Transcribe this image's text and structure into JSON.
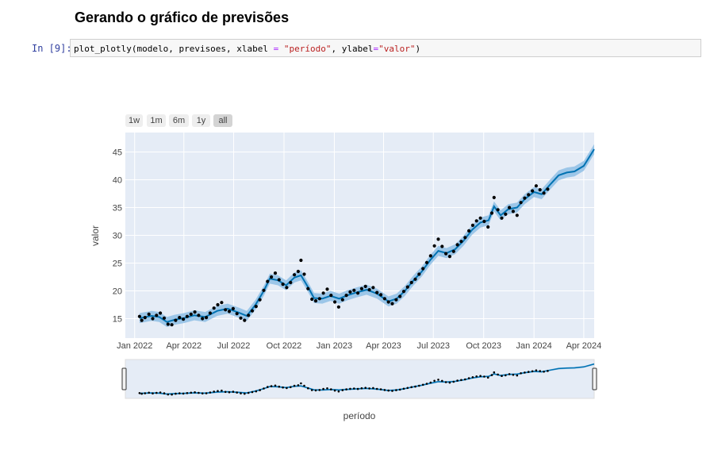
{
  "notebook": {
    "heading": "Gerando o gráfico de previsões",
    "prompt": "In [9]:",
    "code": {
      "part1": "plot_plotly(modelo, previsoes, xlabel ",
      "eq1": "=",
      "str1": " \"período\"",
      "part2": ", ylabel",
      "eq2": "=",
      "str2": "\"valor\"",
      "part3": ")"
    }
  },
  "range_selector": {
    "buttons": [
      "1w",
      "1m",
      "6m",
      "1y",
      "all"
    ],
    "active": "all"
  },
  "colors": {
    "plot_bg": "#e5ecf6",
    "forecast_line": "#0072b2",
    "band": "#9cc6e8",
    "points": "#000000"
  },
  "chart_data": {
    "type": "line",
    "xlabel": "período",
    "ylabel": "valor",
    "x_ticks": [
      "Jan 2022",
      "Apr 2022",
      "Jul 2022",
      "Oct 2022",
      "Jan 2023",
      "Apr 2023",
      "Jul 2023",
      "Oct 2023",
      "Jan 2024",
      "Apr 2024"
    ],
    "y_ticks": [
      15,
      20,
      25,
      30,
      35,
      40,
      45
    ],
    "ylim": [
      11.5,
      48.5
    ],
    "xlim": [
      "2021-12-15",
      "2024-04-20"
    ],
    "grid": true,
    "rangeslider": true,
    "series": [
      {
        "role": "forecast",
        "points": [
          [
            "2022-01-10",
            15.1
          ],
          [
            "2022-02-01",
            15.5
          ],
          [
            "2022-02-15",
            15.3
          ],
          [
            "2022-03-01",
            14.4
          ],
          [
            "2022-03-15",
            14.8
          ],
          [
            "2022-04-01",
            15.1
          ],
          [
            "2022-04-20",
            15.6
          ],
          [
            "2022-05-10",
            15.3
          ],
          [
            "2022-06-01",
            16.4
          ],
          [
            "2022-06-20",
            16.8
          ],
          [
            "2022-07-10",
            16.1
          ],
          [
            "2022-07-25",
            15.5
          ],
          [
            "2022-08-10",
            17.5
          ],
          [
            "2022-08-25",
            20.0
          ],
          [
            "2022-09-05",
            22.2
          ],
          [
            "2022-09-20",
            21.9
          ],
          [
            "2022-10-05",
            21.0
          ],
          [
            "2022-10-20",
            22.4
          ],
          [
            "2022-11-01",
            22.8
          ],
          [
            "2022-11-15",
            20.5
          ],
          [
            "2022-11-25",
            18.7
          ],
          [
            "2022-12-10",
            18.6
          ],
          [
            "2022-12-25",
            19.1
          ],
          [
            "2023-01-10",
            18.6
          ],
          [
            "2023-01-25",
            19.2
          ],
          [
            "2023-02-10",
            19.7
          ],
          [
            "2023-03-01",
            20.2
          ],
          [
            "2023-03-20",
            19.5
          ],
          [
            "2023-04-10",
            18.1
          ],
          [
            "2023-04-25",
            18.6
          ],
          [
            "2023-05-10",
            20.0
          ],
          [
            "2023-05-25",
            21.8
          ],
          [
            "2023-06-10",
            23.5
          ],
          [
            "2023-06-25",
            25.5
          ],
          [
            "2023-07-10",
            27.2
          ],
          [
            "2023-07-25",
            26.8
          ],
          [
            "2023-08-10",
            27.5
          ],
          [
            "2023-08-25",
            29.0
          ],
          [
            "2023-09-10",
            31.0
          ],
          [
            "2023-09-25",
            32.3
          ],
          [
            "2023-10-10",
            32.7
          ],
          [
            "2023-10-20",
            35.2
          ],
          [
            "2023-11-01",
            33.6
          ],
          [
            "2023-11-15",
            34.7
          ],
          [
            "2023-12-01",
            35.0
          ],
          [
            "2023-12-15",
            36.5
          ],
          [
            "2024-01-01",
            37.8
          ],
          [
            "2024-01-15",
            37.4
          ],
          [
            "2024-02-01",
            39.3
          ],
          [
            "2024-02-15",
            40.8
          ],
          [
            "2024-03-01",
            41.3
          ],
          [
            "2024-03-15",
            41.5
          ],
          [
            "2024-04-01",
            42.5
          ],
          [
            "2024-04-20",
            45.5
          ]
        ]
      },
      {
        "role": "observed",
        "points": [
          [
            "2022-01-10",
            15.4
          ],
          [
            "2022-01-14",
            14.7
          ],
          [
            "2022-01-20",
            15.2
          ],
          [
            "2022-01-27",
            15.8
          ],
          [
            "2022-02-03",
            15.0
          ],
          [
            "2022-02-10",
            15.6
          ],
          [
            "2022-02-17",
            16.0
          ],
          [
            "2022-02-24",
            15.1
          ],
          [
            "2022-03-03",
            14.0
          ],
          [
            "2022-03-10",
            13.9
          ],
          [
            "2022-03-17",
            14.7
          ],
          [
            "2022-03-24",
            15.2
          ],
          [
            "2022-03-31",
            14.9
          ],
          [
            "2022-04-07",
            15.4
          ],
          [
            "2022-04-14",
            15.8
          ],
          [
            "2022-04-21",
            16.2
          ],
          [
            "2022-04-28",
            15.6
          ],
          [
            "2022-05-05",
            15.0
          ],
          [
            "2022-05-12",
            15.2
          ],
          [
            "2022-05-19",
            16.0
          ],
          [
            "2022-05-26",
            16.9
          ],
          [
            "2022-06-02",
            17.5
          ],
          [
            "2022-06-09",
            17.9
          ],
          [
            "2022-06-16",
            16.6
          ],
          [
            "2022-06-23",
            16.3
          ],
          [
            "2022-06-30",
            16.8
          ],
          [
            "2022-07-07",
            15.9
          ],
          [
            "2022-07-14",
            15.1
          ],
          [
            "2022-07-21",
            14.7
          ],
          [
            "2022-07-28",
            15.6
          ],
          [
            "2022-08-04",
            16.4
          ],
          [
            "2022-08-11",
            17.2
          ],
          [
            "2022-08-18",
            18.4
          ],
          [
            "2022-08-25",
            20.1
          ],
          [
            "2022-09-01",
            21.7
          ],
          [
            "2022-09-08",
            22.5
          ],
          [
            "2022-09-15",
            23.2
          ],
          [
            "2022-09-22",
            22.0
          ],
          [
            "2022-09-29",
            21.2
          ],
          [
            "2022-10-06",
            20.6
          ],
          [
            "2022-10-13",
            21.5
          ],
          [
            "2022-10-20",
            22.9
          ],
          [
            "2022-10-27",
            23.5
          ],
          [
            "2022-11-01",
            25.5
          ],
          [
            "2022-11-07",
            23.0
          ],
          [
            "2022-11-14",
            20.4
          ],
          [
            "2022-11-21",
            18.5
          ],
          [
            "2022-11-28",
            18.2
          ],
          [
            "2022-12-05",
            18.6
          ],
          [
            "2022-12-12",
            19.6
          ],
          [
            "2022-12-19",
            20.3
          ],
          [
            "2022-12-26",
            19.2
          ],
          [
            "2023-01-02",
            18.0
          ],
          [
            "2023-01-09",
            17.1
          ],
          [
            "2023-01-16",
            18.4
          ],
          [
            "2023-01-23",
            19.2
          ],
          [
            "2023-01-30",
            19.8
          ],
          [
            "2023-02-06",
            20.1
          ],
          [
            "2023-02-13",
            19.6
          ],
          [
            "2023-02-20",
            20.4
          ],
          [
            "2023-02-27",
            20.8
          ],
          [
            "2023-03-06",
            20.2
          ],
          [
            "2023-03-13",
            20.6
          ],
          [
            "2023-03-20",
            19.7
          ],
          [
            "2023-03-27",
            19.3
          ],
          [
            "2023-04-03",
            18.6
          ],
          [
            "2023-04-10",
            18.0
          ],
          [
            "2023-04-17",
            17.7
          ],
          [
            "2023-04-24",
            18.4
          ],
          [
            "2023-05-01",
            19.0
          ],
          [
            "2023-05-08",
            19.9
          ],
          [
            "2023-05-15",
            20.7
          ],
          [
            "2023-05-22",
            21.5
          ],
          [
            "2023-05-29",
            22.1
          ],
          [
            "2023-06-05",
            23.0
          ],
          [
            "2023-06-12",
            24.0
          ],
          [
            "2023-06-19",
            25.1
          ],
          [
            "2023-06-26",
            26.3
          ],
          [
            "2023-07-03",
            28.1
          ],
          [
            "2023-07-10",
            29.3
          ],
          [
            "2023-07-17",
            28.0
          ],
          [
            "2023-07-24",
            26.7
          ],
          [
            "2023-07-31",
            26.2
          ],
          [
            "2023-08-07",
            27.1
          ],
          [
            "2023-08-14",
            28.3
          ],
          [
            "2023-08-21",
            28.9
          ],
          [
            "2023-08-28",
            29.6
          ],
          [
            "2023-09-04",
            30.8
          ],
          [
            "2023-09-11",
            31.8
          ],
          [
            "2023-09-18",
            32.6
          ],
          [
            "2023-09-25",
            33.1
          ],
          [
            "2023-10-02",
            32.5
          ],
          [
            "2023-10-09",
            31.5
          ],
          [
            "2023-10-16",
            34.0
          ],
          [
            "2023-10-20",
            36.8
          ],
          [
            "2023-10-27",
            34.6
          ],
          [
            "2023-11-03",
            33.1
          ],
          [
            "2023-11-10",
            33.8
          ],
          [
            "2023-11-17",
            35.0
          ],
          [
            "2023-11-24",
            34.3
          ],
          [
            "2023-12-01",
            33.6
          ],
          [
            "2023-12-08",
            35.9
          ],
          [
            "2023-12-15",
            36.7
          ],
          [
            "2023-12-22",
            37.3
          ],
          [
            "2023-12-29",
            38.0
          ],
          [
            "2024-01-05",
            38.9
          ],
          [
            "2024-01-12",
            38.2
          ],
          [
            "2024-01-19",
            37.6
          ],
          [
            "2024-01-26",
            38.3
          ]
        ]
      }
    ]
  }
}
